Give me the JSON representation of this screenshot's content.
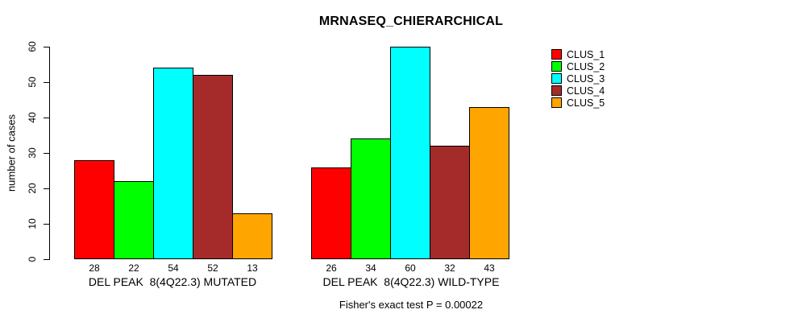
{
  "title": "MRNASEQ_CHIERARCHICAL",
  "chart_data": {
    "type": "bar",
    "title": "MRNASEQ_CHIERARCHICAL",
    "ylabel": "number of cases",
    "xlabel": "",
    "ylim": [
      0,
      60
    ],
    "yticks": [
      0,
      10,
      20,
      30,
      40,
      50,
      60
    ],
    "grid": false,
    "legend_position": "right",
    "bar_border_color": "#000000",
    "categories": [
      "DEL PEAK  8(4Q22.3) MUTATED",
      "DEL PEAK  8(4Q22.3) WILD-TYPE"
    ],
    "series": [
      {
        "name": "CLUS_1",
        "color": "#ff0000",
        "values": [
          28,
          26
        ]
      },
      {
        "name": "CLUS_2",
        "color": "#00ff00",
        "values": [
          22,
          34
        ]
      },
      {
        "name": "CLUS_3",
        "color": "#00ffff",
        "values": [
          54,
          60
        ]
      },
      {
        "name": "CLUS_4",
        "color": "#a52a2a",
        "values": [
          52,
          32
        ]
      },
      {
        "name": "CLUS_5",
        "color": "#ffa500",
        "values": [
          13,
          43
        ]
      }
    ],
    "bar_value_labels": {
      "group_1": [
        28,
        22,
        54,
        52,
        13
      ],
      "group_2": [
        26,
        34,
        60,
        32,
        43
      ]
    },
    "annotation": "Fisher's exact test P = 0.00022"
  }
}
